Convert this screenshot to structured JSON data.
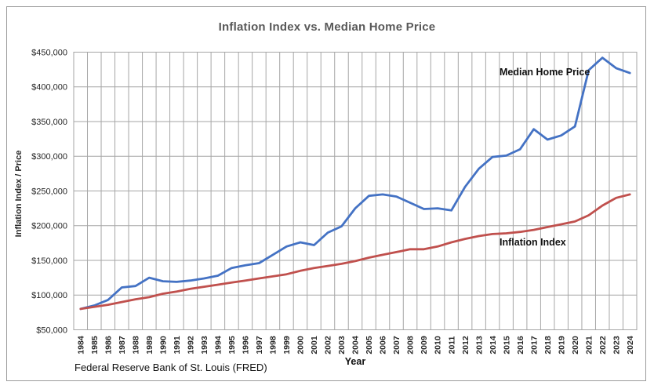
{
  "chart_data": {
    "type": "line",
    "title": "Inflation Index vs. Median Home Price",
    "xlabel": "Year",
    "ylabel": "Inflation Index / Price",
    "source_note": "Federal Reserve Bank of St. Louis (FRED)",
    "grid": true,
    "grid_color": "#A6A6A6",
    "title_color": "#595959",
    "tick_color": "#262626",
    "ylim": [
      50000,
      450000
    ],
    "ytick_step": 50000,
    "ytick_labels": [
      "$50,000",
      "$100,000",
      "$150,000",
      "$200,000",
      "$250,000",
      "$300,000",
      "$350,000",
      "$400,000",
      "$450,000"
    ],
    "legend": "inline-annotations",
    "x": [
      1984,
      1985,
      1986,
      1987,
      1988,
      1989,
      1990,
      1991,
      1992,
      1993,
      1994,
      1995,
      1996,
      1997,
      1998,
      1999,
      2000,
      2001,
      2002,
      2003,
      2004,
      2005,
      2006,
      2007,
      2008,
      2009,
      2010,
      2011,
      2012,
      2013,
      2014,
      2015,
      2016,
      2017,
      2018,
      2019,
      2020,
      2021,
      2022,
      2023,
      2024
    ],
    "series": [
      {
        "name": "Median Home Price",
        "color": "#4472C4",
        "values": [
          80000,
          85000,
          93000,
          111000,
          113000,
          125000,
          120000,
          119000,
          121000,
          124000,
          128000,
          139000,
          143000,
          146000,
          158000,
          170000,
          176000,
          172000,
          190000,
          199000,
          225000,
          243000,
          245000,
          242000,
          233000,
          224000,
          225000,
          222000,
          256000,
          282000,
          299000,
          301000,
          310000,
          339000,
          324000,
          330000,
          343000,
          424000,
          442000,
          427000,
          420000
        ]
      },
      {
        "name": "Inflation Index",
        "color": "#C0504D",
        "values": [
          80000,
          83000,
          86000,
          90000,
          94000,
          97000,
          102000,
          105000,
          109000,
          112000,
          115000,
          118000,
          121000,
          124000,
          127000,
          130000,
          135000,
          139000,
          142000,
          145000,
          149000,
          154000,
          158000,
          162000,
          166000,
          166000,
          170000,
          176000,
          181000,
          185000,
          188000,
          189000,
          191000,
          194000,
          198000,
          202000,
          206000,
          215000,
          229000,
          240000,
          245000
        ]
      }
    ]
  }
}
